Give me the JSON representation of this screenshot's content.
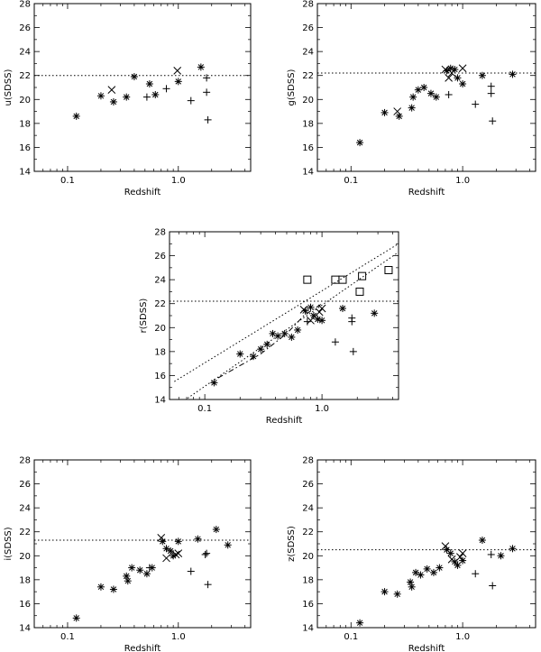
{
  "chart_data": [
    {
      "type": "scatter",
      "xlabel": "Redshift",
      "ylabel": "u(SDSS)",
      "x_scale": "log",
      "xlim": [
        0.05,
        4.5
      ],
      "ylim": [
        14,
        28
      ],
      "x_ticks": [
        0.1,
        1.0
      ],
      "x_tick_labels": [
        "0.1",
        "1.0"
      ],
      "y_ticks": [
        14,
        16,
        18,
        20,
        22,
        24,
        26,
        28
      ],
      "limit_line": 22.0,
      "series": [
        {
          "marker": "asterisk",
          "points": [
            [
              0.12,
              18.6
            ],
            [
              0.2,
              20.3
            ],
            [
              0.26,
              19.8
            ],
            [
              0.34,
              20.2
            ],
            [
              0.4,
              21.9
            ],
            [
              0.55,
              21.3
            ],
            [
              0.62,
              20.4
            ],
            [
              1.0,
              21.5
            ]
          ]
        },
        {
          "marker": "cross",
          "points": [
            [
              0.25,
              20.8
            ],
            [
              0.98,
              22.4
            ]
          ]
        },
        {
          "marker": "plus",
          "points": [
            [
              0.52,
              20.2
            ],
            [
              0.78,
              20.9
            ],
            [
              1.3,
              19.9
            ],
            [
              1.8,
              21.8
            ],
            [
              1.8,
              20.6
            ],
            [
              1.85,
              18.3
            ]
          ]
        },
        {
          "marker": "asterisk",
          "points": [
            [
              1.6,
              22.7
            ]
          ]
        }
      ]
    },
    {
      "type": "scatter",
      "xlabel": "Redshift",
      "ylabel": "g(SDSS)",
      "x_scale": "log",
      "xlim": [
        0.05,
        4.5
      ],
      "ylim": [
        14,
        28
      ],
      "x_ticks": [
        0.1,
        1.0
      ],
      "x_tick_labels": [
        "0.1",
        "1.0"
      ],
      "y_ticks": [
        14,
        16,
        18,
        20,
        22,
        24,
        26,
        28
      ],
      "limit_line": 22.2,
      "series": [
        {
          "marker": "asterisk",
          "points": [
            [
              0.12,
              16.4
            ],
            [
              0.2,
              18.9
            ],
            [
              0.27,
              18.6
            ],
            [
              0.35,
              19.3
            ],
            [
              0.36,
              20.2
            ],
            [
              0.4,
              20.8
            ],
            [
              0.45,
              21.0
            ],
            [
              0.52,
              20.5
            ],
            [
              0.58,
              20.2
            ],
            [
              0.72,
              22.4
            ],
            [
              0.78,
              22.6
            ],
            [
              0.85,
              22.5
            ],
            [
              0.9,
              21.8
            ],
            [
              1.0,
              21.3
            ],
            [
              1.5,
              22.0
            ],
            [
              2.8,
              22.1
            ]
          ]
        },
        {
          "marker": "cross",
          "points": [
            [
              0.26,
              19.0
            ],
            [
              0.7,
              22.5
            ],
            [
              0.75,
              21.8
            ],
            [
              0.8,
              22.2
            ],
            [
              1.0,
              22.6
            ]
          ]
        },
        {
          "marker": "plus",
          "points": [
            [
              0.75,
              20.4
            ],
            [
              1.3,
              19.6
            ],
            [
              1.8,
              21.1
            ],
            [
              1.8,
              20.5
            ],
            [
              1.85,
              18.2
            ]
          ]
        }
      ]
    },
    {
      "type": "scatter",
      "xlabel": "Redshift",
      "ylabel": "r(SDSS)",
      "x_scale": "log",
      "xlim": [
        0.05,
        4.5
      ],
      "ylim": [
        14,
        28
      ],
      "x_ticks": [
        0.1,
        1.0
      ],
      "x_tick_labels": [
        "0.1",
        "1.0"
      ],
      "y_ticks": [
        14,
        16,
        18,
        20,
        22,
        24,
        26,
        28
      ],
      "limit_line": 22.2,
      "dotted_lines": [
        [
          [
            0.055,
            15.5
          ],
          [
            4.5,
            27.0
          ]
        ],
        [
          [
            0.06,
            13.6
          ],
          [
            4.5,
            26.3
          ]
        ]
      ],
      "dashed_line": [
        [
          0.13,
          15.8
        ],
        [
          0.3,
          17.8
        ],
        [
          0.5,
          19.5
        ],
        [
          0.7,
          21.0
        ],
        [
          1.0,
          22.0
        ]
      ],
      "series": [
        {
          "marker": "asterisk",
          "points": [
            [
              0.12,
              15.4
            ],
            [
              0.2,
              17.8
            ],
            [
              0.26,
              17.6
            ],
            [
              0.3,
              18.2
            ],
            [
              0.34,
              18.6
            ],
            [
              0.38,
              19.5
            ],
            [
              0.42,
              19.3
            ],
            [
              0.48,
              19.5
            ],
            [
              0.55,
              19.2
            ],
            [
              0.62,
              19.8
            ],
            [
              0.72,
              21.4
            ],
            [
              0.8,
              21.7
            ],
            [
              0.85,
              21.0
            ],
            [
              0.92,
              20.7
            ],
            [
              1.0,
              20.6
            ],
            [
              1.5,
              21.6
            ],
            [
              2.8,
              21.2
            ]
          ]
        },
        {
          "marker": "cross",
          "points": [
            [
              0.7,
              21.5
            ],
            [
              0.8,
              20.6
            ],
            [
              0.95,
              21.3
            ],
            [
              1.0,
              21.6
            ]
          ]
        },
        {
          "marker": "plus",
          "points": [
            [
              0.75,
              20.5
            ],
            [
              1.3,
              18.8
            ],
            [
              1.8,
              20.8
            ],
            [
              1.8,
              20.5
            ],
            [
              1.85,
              18.0
            ]
          ]
        },
        {
          "marker": "square",
          "points": [
            [
              0.75,
              24.0
            ],
            [
              1.3,
              24.0
            ],
            [
              1.5,
              24.0
            ],
            [
              2.1,
              23.0
            ],
            [
              2.2,
              24.3
            ],
            [
              3.7,
              24.8
            ]
          ]
        }
      ]
    },
    {
      "type": "scatter",
      "xlabel": "Redshift",
      "ylabel": "i(SDSS)",
      "x_scale": "log",
      "xlim": [
        0.05,
        4.5
      ],
      "ylim": [
        14,
        28
      ],
      "x_ticks": [
        0.1,
        1.0
      ],
      "x_tick_labels": [
        "0.1",
        "1.0"
      ],
      "y_ticks": [
        14,
        16,
        18,
        20,
        22,
        24,
        26,
        28
      ],
      "limit_line": 21.3,
      "series": [
        {
          "marker": "asterisk",
          "points": [
            [
              0.12,
              14.8
            ],
            [
              0.2,
              17.4
            ],
            [
              0.26,
              17.2
            ],
            [
              0.34,
              18.3
            ],
            [
              0.35,
              17.9
            ],
            [
              0.38,
              19.0
            ],
            [
              0.45,
              18.8
            ],
            [
              0.52,
              18.5
            ],
            [
              0.58,
              19.0
            ],
            [
              0.72,
              21.2
            ],
            [
              0.78,
              20.6
            ],
            [
              0.85,
              20.4
            ],
            [
              0.9,
              20.0
            ],
            [
              1.0,
              21.2
            ],
            [
              1.5,
              21.4
            ],
            [
              2.2,
              22.2
            ],
            [
              2.8,
              20.9
            ]
          ]
        },
        {
          "marker": "cross",
          "points": [
            [
              0.7,
              21.5
            ],
            [
              0.78,
              19.8
            ],
            [
              0.95,
              20.1
            ],
            [
              1.0,
              20.2
            ]
          ]
        },
        {
          "marker": "plus",
          "points": [
            [
              0.55,
              19.0
            ],
            [
              1.3,
              18.7
            ],
            [
              1.75,
              20.1
            ],
            [
              1.8,
              20.2
            ],
            [
              1.85,
              17.6
            ]
          ]
        }
      ]
    },
    {
      "type": "scatter",
      "xlabel": "Redshift",
      "ylabel": "z(SDSS)",
      "x_scale": "log",
      "xlim": [
        0.05,
        4.5
      ],
      "ylim": [
        14,
        28
      ],
      "x_ticks": [
        0.1,
        1.0
      ],
      "x_tick_labels": [
        "0.1",
        "1.0"
      ],
      "y_ticks": [
        14,
        16,
        18,
        20,
        22,
        24,
        26,
        28
      ],
      "limit_line": 20.5,
      "series": [
        {
          "marker": "asterisk",
          "points": [
            [
              0.12,
              14.4
            ],
            [
              0.2,
              17.0
            ],
            [
              0.26,
              16.8
            ],
            [
              0.34,
              17.8
            ],
            [
              0.35,
              17.4
            ],
            [
              0.38,
              18.6
            ],
            [
              0.42,
              18.4
            ],
            [
              0.48,
              18.9
            ],
            [
              0.55,
              18.6
            ],
            [
              0.62,
              19.0
            ],
            [
              0.72,
              20.5
            ],
            [
              0.78,
              20.2
            ],
            [
              0.85,
              19.5
            ],
            [
              0.9,
              19.2
            ],
            [
              1.0,
              19.6
            ],
            [
              1.5,
              21.3
            ],
            [
              2.2,
              20.0
            ],
            [
              2.8,
              20.6
            ]
          ]
        },
        {
          "marker": "cross",
          "points": [
            [
              0.7,
              20.8
            ],
            [
              0.8,
              19.7
            ],
            [
              0.95,
              19.9
            ],
            [
              1.0,
              20.2
            ]
          ]
        },
        {
          "marker": "plus",
          "points": [
            [
              1.3,
              18.5
            ],
            [
              1.8,
              20.1
            ],
            [
              1.85,
              17.5
            ]
          ]
        }
      ]
    }
  ]
}
